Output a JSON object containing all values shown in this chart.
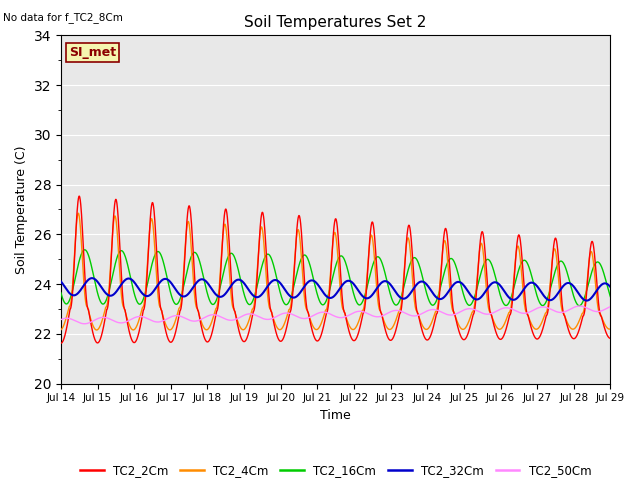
{
  "title": "Soil Temperatures Set 2",
  "top_left_text": "No data for f_TC2_8Cm",
  "si_met_label": "SI_met",
  "xlabel": "Time",
  "ylabel": "Soil Temperature (C)",
  "ylim": [
    20,
    34
  ],
  "fig_bg_color": "#ffffff",
  "plot_bg_color": "#e8e8e8",
  "grid_color": "#ffffff",
  "series": {
    "TC2_2Cm": {
      "color": "#ff0000",
      "lw": 1.0
    },
    "TC2_4Cm": {
      "color": "#ff8c00",
      "lw": 1.0
    },
    "TC2_16Cm": {
      "color": "#00cc00",
      "lw": 1.0
    },
    "TC2_32Cm": {
      "color": "#0000cc",
      "lw": 1.5
    },
    "TC2_50Cm": {
      "color": "#ff88ff",
      "lw": 1.0
    }
  },
  "legend_entries": [
    "TC2_2Cm",
    "TC2_4Cm",
    "TC2_16Cm",
    "TC2_32Cm",
    "TC2_50Cm"
  ],
  "legend_colors": [
    "#ff0000",
    "#ff8c00",
    "#00cc00",
    "#0000cc",
    "#ff88ff"
  ]
}
